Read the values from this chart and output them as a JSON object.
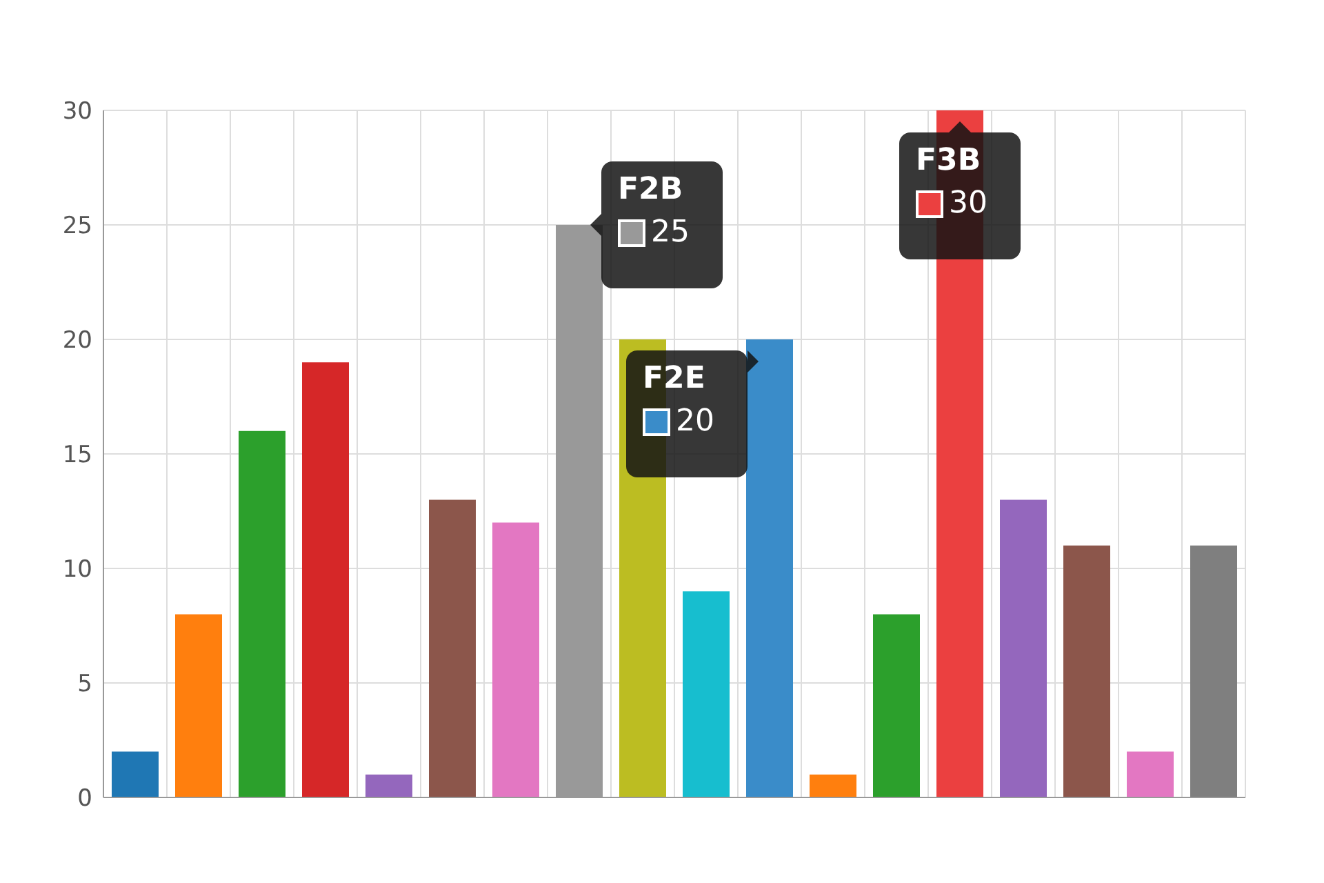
{
  "chart_data": {
    "type": "bar",
    "categories": [
      null,
      null,
      null,
      null,
      null,
      null,
      null,
      null,
      null,
      null,
      null,
      null,
      null,
      null,
      null,
      null,
      null,
      null
    ],
    "values": [
      2,
      8,
      16,
      19,
      1,
      13,
      12,
      25,
      20,
      9,
      20,
      1,
      8,
      30,
      13,
      11,
      2,
      11
    ],
    "colors": [
      "#1f77b4",
      "#ff7f0e",
      "#2ca02c",
      "#d62728",
      "#9467bd",
      "#8c564b",
      "#e377c2",
      "#999999",
      "#bcbd22",
      "#17becf",
      "#3a8cc9",
      "#ff7f0e",
      "#2ca02c",
      "#eb4040",
      "#9467bd",
      "#8c564b",
      "#e377c2",
      "#7f7f7f"
    ],
    "ylim": [
      0,
      30
    ],
    "yticks": [
      0,
      5,
      10,
      15,
      20,
      25,
      30
    ],
    "grid": true,
    "annotations": [
      "F2B",
      "25",
      "F2E",
      "20",
      "F3B",
      "30"
    ]
  }
}
